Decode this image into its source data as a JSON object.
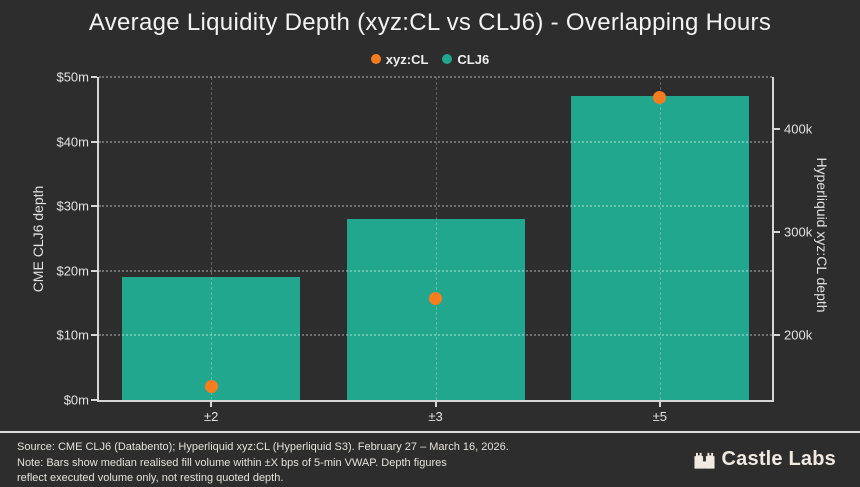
{
  "title": "Average Liquidity Depth (xyz:CL vs CLJ6) - Overlapping Hours",
  "legend": {
    "items": [
      {
        "label": "xyz:CL",
        "color": "#f57d1f",
        "marker": "circle-icon"
      },
      {
        "label": "CLJ6",
        "color": "#20a78e",
        "marker": "circle-icon"
      }
    ]
  },
  "chart_data": {
    "type": "bar",
    "categories": [
      "±2",
      "±3",
      "±5"
    ],
    "series": [
      {
        "name": "CLJ6",
        "type": "bar",
        "axis": "left",
        "color": "#20a78e",
        "values": [
          19,
          28,
          47
        ],
        "value_unit": "$m"
      },
      {
        "name": "xyz:CL",
        "type": "scatter",
        "axis": "right",
        "color": "#f57d1f",
        "values": [
          150,
          235,
          430
        ],
        "value_unit": "k"
      }
    ],
    "left_axis": {
      "label": "CME CLJ6 depth",
      "tick_labels": [
        "$0m",
        "$10m",
        "$20m",
        "$30m",
        "$40m",
        "$50m"
      ],
      "tick_values": [
        0,
        10,
        20,
        30,
        40,
        50
      ],
      "range": [
        0,
        50
      ]
    },
    "right_axis": {
      "label": "Hyperliquid xyz:CL depth",
      "tick_labels": [
        "200k",
        "300k",
        "400k"
      ],
      "tick_values": [
        200,
        300,
        400
      ],
      "range": [
        137,
        450
      ]
    },
    "grid": {
      "horizontal": "dotted lines at left-axis ticks",
      "vertical": "dashed lines at category centers",
      "legend_position": "top-center"
    }
  },
  "footer": {
    "source": "Source: CME CLJ6 (Databento); Hyperliquid xyz:CL (Hyperliquid S3). February 27 – March 16, 2026.",
    "note1": "Note: Bars show median realised fill volume within ±X bps of 5-min VWAP. Depth figures",
    "note2": "reflect executed volume only, not resting quoted depth.",
    "brand": "Castle Labs"
  },
  "colors": {
    "background": "#2d2d2d",
    "axis_line": "#d6d6d6",
    "title_text": "#f3f3f3",
    "tick_text": "#e2e2e2",
    "footer_text": "#e5e2dd",
    "teal": "#20a78e",
    "orange": "#f57d1f"
  }
}
